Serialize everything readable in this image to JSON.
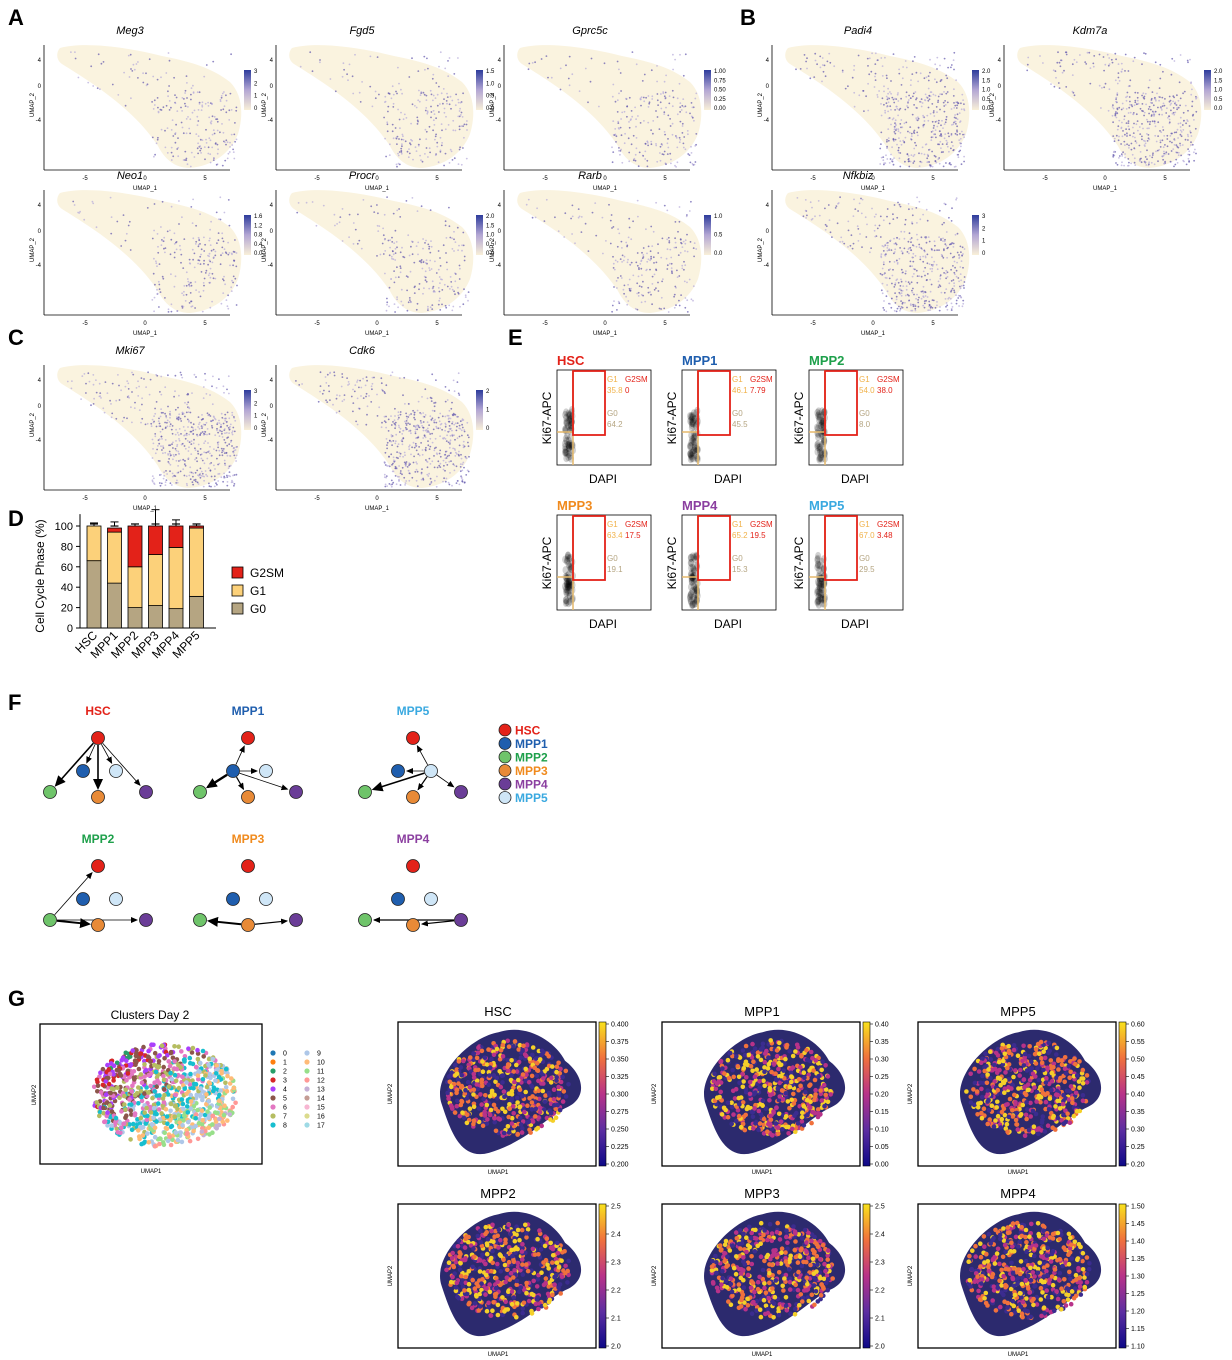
{
  "panels": {
    "A": {
      "letter": "A",
      "plots": [
        {
          "gene": "Meg3",
          "cbar_ticks": [
            "3",
            "2",
            "1",
            "0"
          ]
        },
        {
          "gene": "Fgd5",
          "cbar_ticks": [
            "1.5",
            "1.0",
            "0.5",
            "0.0"
          ]
        },
        {
          "gene": "Gprc5c",
          "cbar_ticks": [
            "1.00",
            "0.75",
            "0.50",
            "0.25",
            "0.00"
          ]
        },
        {
          "gene": "Neo1",
          "cbar_ticks": [
            "1.6",
            "1.2",
            "0.8",
            "0.4",
            "0.0"
          ]
        },
        {
          "gene": "Procr",
          "cbar_ticks": [
            "2.0",
            "1.5",
            "1.0",
            "0.5",
            "0.0"
          ]
        },
        {
          "gene": "Rarb",
          "cbar_ticks": [
            "1.0",
            "0.5",
            "0.0"
          ]
        }
      ]
    },
    "B": {
      "letter": "B",
      "plots": [
        {
          "gene": "Padi4",
          "cbar_ticks": [
            "2.0",
            "1.5",
            "1.0",
            "0.5",
            "0.0"
          ]
        },
        {
          "gene": "Kdm7a",
          "cbar_ticks": [
            "2.0",
            "1.5",
            "1.0",
            "0.5",
            "0.0"
          ]
        },
        {
          "gene": "Nfkbiz",
          "cbar_ticks": [
            "3",
            "2",
            "1",
            "0"
          ]
        }
      ]
    },
    "C": {
      "letter": "C",
      "plots": [
        {
          "gene": "Mki67",
          "cbar_ticks": [
            "3",
            "2",
            "1",
            "0"
          ]
        },
        {
          "gene": "Cdk6",
          "cbar_ticks": [
            "2",
            "1",
            "0"
          ]
        }
      ]
    },
    "umap_axis": {
      "xlabel": "UMAP_1",
      "ylabel": "UMAP_2",
      "xticks": [
        "-5",
        "0",
        "5"
      ],
      "yticks": [
        "4",
        "0",
        "-4"
      ]
    },
    "D": {
      "letter": "D",
      "legend": [
        {
          "name": "G2SM",
          "color": "#e32219"
        },
        {
          "name": "G1",
          "color": "#fcd17a"
        },
        {
          "name": "G0",
          "color": "#b5a582"
        }
      ]
    },
    "E": {
      "letter": "E",
      "xlabel": "DAPI",
      "ylabel": "Ki67-APC",
      "gate_labels": {
        "g1": "G1",
        "g2sm": "G2SM",
        "g0": "G0"
      },
      "plots": [
        {
          "title": "HSC",
          "color": "#e32219",
          "g1": "35.8",
          "g2sm": "0",
          "g0": "64.2"
        },
        {
          "title": "MPP1",
          "color": "#1f5eae",
          "g1": "46.1",
          "g2sm": "7.79",
          "g0": "45.5"
        },
        {
          "title": "MPP2",
          "color": "#1ea04b",
          "g1": "54.0",
          "g2sm": "38.0",
          "g0": "8.0"
        },
        {
          "title": "MPP3",
          "color": "#f08a1d",
          "g1": "63.4",
          "g2sm": "17.5",
          "g0": "19.1"
        },
        {
          "title": "MPP4",
          "color": "#8b3fa0",
          "g1": "65.2",
          "g2sm": "19.5",
          "g0": "15.3"
        },
        {
          "title": "MPP5",
          "color": "#3aa9e0",
          "g1": "67.0",
          "g2sm": "3.48",
          "g0": "29.5"
        }
      ]
    },
    "F": {
      "letter": "F",
      "graphs": [
        {
          "title": "HSC",
          "color": "#e32219"
        },
        {
          "title": "MPP1",
          "color": "#1f5eae"
        },
        {
          "title": "MPP5",
          "color": "#3aa9e0"
        },
        {
          "title": "MPP2",
          "color": "#1ea04b"
        },
        {
          "title": "MPP3",
          "color": "#f08a1d"
        },
        {
          "title": "MPP4",
          "color": "#8b3fa0"
        }
      ],
      "legend": [
        {
          "name": "HSC",
          "color": "#e32219",
          "fill": "#e32219"
        },
        {
          "name": "MPP1",
          "color": "#1f5eae",
          "fill": "#1f5eae"
        },
        {
          "name": "MPP2",
          "color": "#1ea04b",
          "fill": "#6fc46a"
        },
        {
          "name": "MPP3",
          "color": "#f08a1d",
          "fill": "#e88a37"
        },
        {
          "name": "MPP4",
          "color": "#8b3fa0",
          "fill": "#6a3d97"
        },
        {
          "name": "MPP5",
          "color": "#3aa9e0",
          "fill": "#cfe6f7"
        }
      ]
    },
    "G": {
      "letter": "G",
      "clusters_title": "Clusters Day 2",
      "clusters": [
        "0",
        "1",
        "2",
        "3",
        "4",
        "5",
        "6",
        "7",
        "8",
        "9",
        "10",
        "11",
        "12",
        "13",
        "14",
        "15",
        "16",
        "17"
      ],
      "cluster_colors": [
        "#1f77b4",
        "#ff7f0e",
        "#279e68",
        "#d62728",
        "#aa40fc",
        "#8c564b",
        "#e377c2",
        "#b5bd61",
        "#17becf",
        "#aec7e8",
        "#ffbb78",
        "#98df8a",
        "#ff9896",
        "#c5b0d5",
        "#c49c94",
        "#f7b6d2",
        "#dbdb8d",
        "#9edae5"
      ],
      "xlabel": "UMAP1",
      "ylabel": "UMAP2",
      "plots": [
        {
          "title": "HSC",
          "ticks": [
            "0.400",
            "0.375",
            "0.350",
            "0.325",
            "0.300",
            "0.275",
            "0.250",
            "0.225",
            "0.200"
          ]
        },
        {
          "title": "MPP1",
          "ticks": [
            "0.40",
            "0.35",
            "0.30",
            "0.25",
            "0.20",
            "0.15",
            "0.10",
            "0.05",
            "0.00"
          ]
        },
        {
          "title": "MPP5",
          "ticks": [
            "0.60",
            "0.55",
            "0.50",
            "0.45",
            "0.40",
            "0.35",
            "0.30",
            "0.25",
            "0.20"
          ]
        },
        {
          "title": "MPP2",
          "ticks": [
            "2.5",
            "2.4",
            "2.3",
            "2.2",
            "2.1",
            "2.0"
          ]
        },
        {
          "title": "MPP3",
          "ticks": [
            "2.5",
            "2.4",
            "2.3",
            "2.2",
            "2.1",
            "2.0"
          ]
        },
        {
          "title": "MPP4",
          "ticks": [
            "1.50",
            "1.45",
            "1.40",
            "1.35",
            "1.30",
            "1.25",
            "1.20",
            "1.15",
            "1.10"
          ]
        }
      ]
    }
  },
  "chart_data": [
    {
      "type": "bar",
      "stacked": true,
      "categories": [
        "HSC",
        "MPP1",
        "MPP2",
        "MPP3",
        "MPP4",
        "MPP5"
      ],
      "series": [
        {
          "name": "G0",
          "values": [
            66,
            44,
            20,
            22,
            19,
            31
          ]
        },
        {
          "name": "G1",
          "values": [
            34,
            50,
            40,
            50,
            60,
            67
          ]
        },
        {
          "name": "G2SM",
          "values": [
            0,
            4,
            40,
            28,
            21,
            2
          ]
        }
      ],
      "error_totals": [
        3,
        4,
        2,
        16,
        6,
        2
      ],
      "ylabel": "Cell Cycle Phase (%)",
      "yticks": [
        "0",
        "20",
        "40",
        "60",
        "80",
        "100"
      ],
      "ylim": [
        0,
        120
      ]
    }
  ]
}
